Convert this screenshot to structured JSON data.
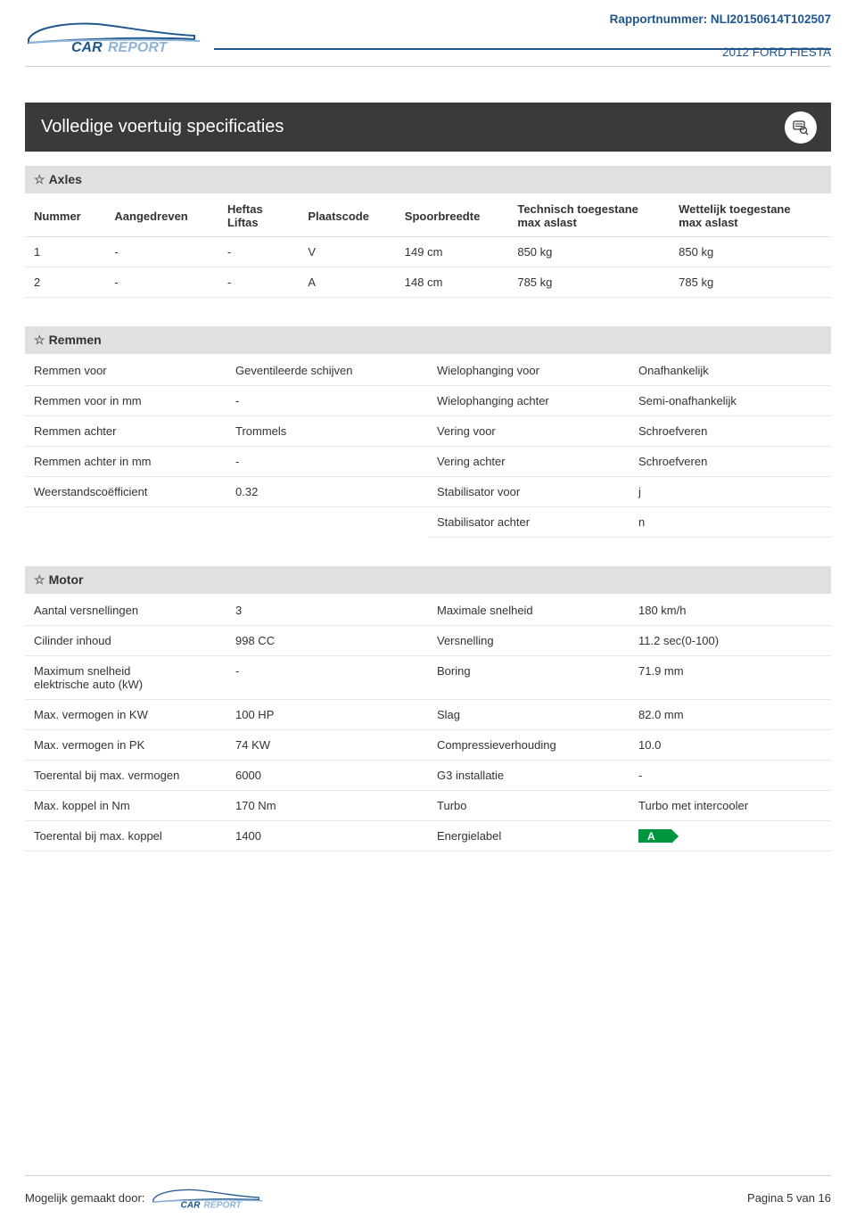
{
  "colors": {
    "primary": "#1f568e",
    "titlebar_bg": "#3a3a3a",
    "titlebar_text": "#ffffff",
    "section_bg": "#e0e0e0",
    "border": "#e8e8e8",
    "energy_A": "#009640"
  },
  "header": {
    "report_label": "Rapportnummer: NLI20150614T102507",
    "car": "2012 FORD FIESTA",
    "logo_text_main": "CAR",
    "logo_text_sub": "REPORT"
  },
  "page_title": "Volledige voertuig specificaties",
  "sections": {
    "axles": {
      "title": "Axles",
      "columns": [
        "Nummer",
        "Aangedreven",
        "Heftas\nLiftas",
        "Plaatscode",
        "Spoorbreedte",
        "Technisch toegestane\nmax aslast",
        "Wettelijk toegestane\nmax aslast"
      ],
      "rows": [
        [
          "1",
          "-",
          "-",
          "V",
          "149 cm",
          "850 kg",
          "850 kg"
        ],
        [
          "2",
          "-",
          "-",
          "A",
          "148 cm",
          "785 kg",
          "785 kg"
        ]
      ],
      "col_widths": [
        "10%",
        "14%",
        "10%",
        "12%",
        "14%",
        "20%",
        "20%"
      ]
    },
    "brakes": {
      "title": "Remmen",
      "pairs": [
        [
          "Remmen voor",
          "Geventileerde schijven",
          "Wielophanging voor",
          "Onafhankelijk"
        ],
        [
          "Remmen voor in mm",
          "-",
          "Wielophanging achter",
          "Semi-onafhankelijk"
        ],
        [
          "Remmen achter",
          "Trommels",
          "Vering voor",
          "Schroefveren"
        ],
        [
          "Remmen achter in mm",
          "-",
          "Vering achter",
          "Schroefveren"
        ],
        [
          "Weerstandscoëfficient",
          "0.32",
          "Stabilisator voor",
          "j"
        ],
        [
          "",
          "",
          "Stabilisator achter",
          "n"
        ]
      ]
    },
    "motor": {
      "title": "Motor",
      "pairs": [
        [
          "Aantal versnellingen",
          "3",
          "Maximale snelheid",
          "180 km/h"
        ],
        [
          "Cilinder inhoud",
          "998 CC",
          "Versnelling",
          "11.2 sec(0-100)"
        ],
        [
          "Maximum snelheid\nelektrische auto (kW)",
          "-",
          "Boring",
          "71.9 mm"
        ],
        [
          "Max. vermogen in KW",
          "100 HP",
          "Slag",
          "82.0 mm"
        ],
        [
          "Max. vermogen in PK",
          "74 KW",
          "Compressieverhouding",
          "10.0"
        ],
        [
          "Toerental bij max. vermogen",
          "6000",
          "G3 installatie",
          "-"
        ],
        [
          "Max. koppel in Nm",
          "170 Nm",
          "Turbo",
          "Turbo met intercooler"
        ],
        [
          "Toerental bij max. koppel",
          "1400",
          "Energielabel",
          "__ENERGY_A__"
        ]
      ],
      "energy_label_value": "A"
    }
  },
  "footer": {
    "left": "Mogelijk gemaakt door:",
    "right": "Pagina 5 van 16"
  }
}
